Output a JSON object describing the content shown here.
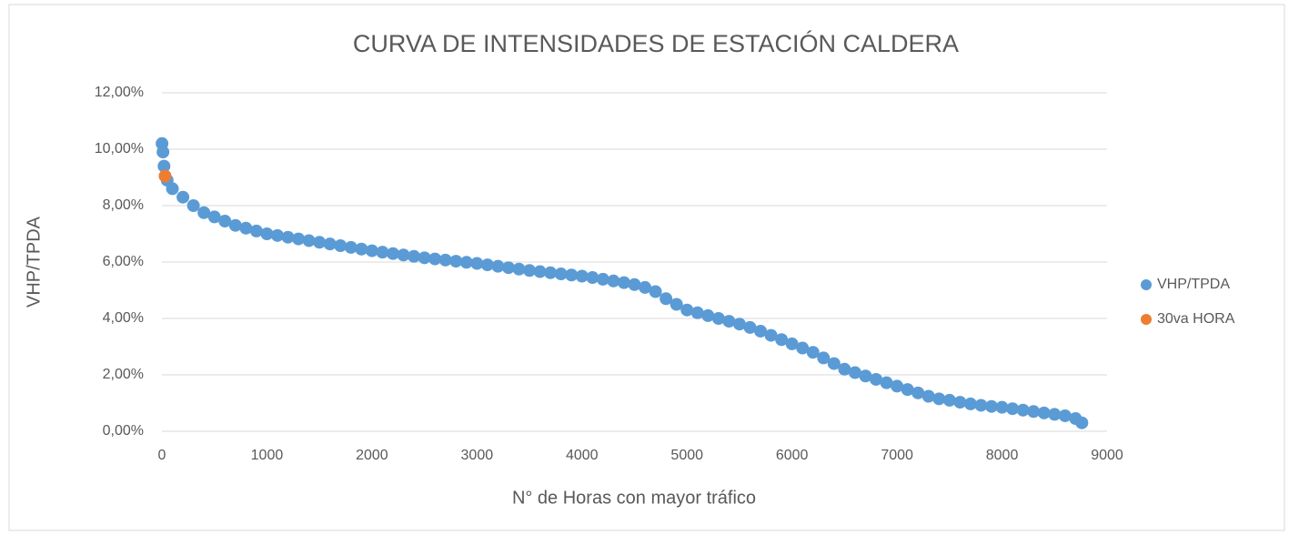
{
  "chart_data": {
    "type": "scatter",
    "title": "CURVA DE INTENSIDADES DE ESTACIÓN  CALDERA",
    "x_label": "N° de Horas con mayor tráfico",
    "y_label": "VHP/TPDA",
    "xlim": [
      0,
      9000
    ],
    "xticks": [
      0,
      1000,
      2000,
      3000,
      4000,
      5000,
      6000,
      7000,
      8000,
      9000
    ],
    "ylim": [
      0,
      12
    ],
    "yticks": [
      {
        "value": 0,
        "label": "0,00%"
      },
      {
        "value": 2,
        "label": "2,00%"
      },
      {
        "value": 4,
        "label": "4,00%"
      },
      {
        "value": 6,
        "label": "6,00%"
      },
      {
        "value": 8,
        "label": "8,00%"
      },
      {
        "value": 10,
        "label": "10,00%"
      },
      {
        "value": 12,
        "label": "12,00%"
      }
    ],
    "grid": true,
    "legend": "right",
    "series": [
      {
        "name": "VHP/TPDA",
        "color": "#5b9bd5",
        "x": [
          1,
          10,
          20,
          50,
          100,
          200,
          300,
          400,
          500,
          600,
          700,
          800,
          900,
          1000,
          1100,
          1200,
          1300,
          1400,
          1500,
          1600,
          1700,
          1800,
          1900,
          2000,
          2100,
          2200,
          2300,
          2400,
          2500,
          2600,
          2700,
          2800,
          2900,
          3000,
          3100,
          3200,
          3300,
          3400,
          3500,
          3600,
          3700,
          3800,
          3900,
          4000,
          4100,
          4200,
          4300,
          4400,
          4500,
          4600,
          4700,
          4800,
          4900,
          5000,
          5100,
          5200,
          5300,
          5400,
          5500,
          5600,
          5700,
          5800,
          5900,
          6000,
          6100,
          6200,
          6300,
          6400,
          6500,
          6600,
          6700,
          6800,
          6900,
          7000,
          7100,
          7200,
          7300,
          7400,
          7500,
          7600,
          7700,
          7800,
          7900,
          8000,
          8100,
          8200,
          8300,
          8400,
          8500,
          8600,
          8700,
          8760
        ],
        "values": [
          10.2,
          9.9,
          9.4,
          8.9,
          8.6,
          8.3,
          8.0,
          7.75,
          7.6,
          7.45,
          7.3,
          7.2,
          7.1,
          7.0,
          6.94,
          6.88,
          6.82,
          6.76,
          6.7,
          6.64,
          6.58,
          6.52,
          6.46,
          6.4,
          6.35,
          6.3,
          6.25,
          6.2,
          6.15,
          6.11,
          6.07,
          6.03,
          5.99,
          5.95,
          5.9,
          5.85,
          5.8,
          5.75,
          5.7,
          5.66,
          5.62,
          5.58,
          5.54,
          5.5,
          5.45,
          5.39,
          5.33,
          5.27,
          5.2,
          5.1,
          4.95,
          4.7,
          4.5,
          4.3,
          4.2,
          4.1,
          4.0,
          3.9,
          3.8,
          3.68,
          3.55,
          3.4,
          3.25,
          3.1,
          2.95,
          2.8,
          2.6,
          2.4,
          2.2,
          2.08,
          1.96,
          1.84,
          1.72,
          1.6,
          1.48,
          1.36,
          1.24,
          1.15,
          1.1,
          1.03,
          0.97,
          0.92,
          0.88,
          0.85,
          0.8,
          0.75,
          0.7,
          0.65,
          0.6,
          0.55,
          0.45,
          0.3
        ]
      },
      {
        "name": "30va HORA",
        "color": "#ed7d31",
        "x": [
          30
        ],
        "values": [
          9.05
        ]
      }
    ]
  }
}
